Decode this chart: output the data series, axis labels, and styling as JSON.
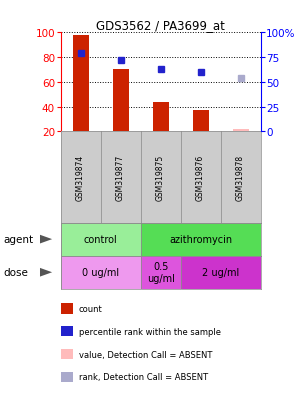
{
  "title": "GDS3562 / PA3699_at",
  "samples": [
    "GSM319874",
    "GSM319877",
    "GSM319875",
    "GSM319876",
    "GSM319878"
  ],
  "count_values": [
    98,
    70,
    44,
    37,
    22
  ],
  "count_colors": [
    "#cc2200",
    "#cc2200",
    "#cc2200",
    "#cc2200",
    "#ffbbbb"
  ],
  "rank_values": [
    79,
    72,
    63,
    60,
    54
  ],
  "rank_colors": [
    "#2222cc",
    "#2222cc",
    "#2222cc",
    "#2222cc",
    "#aaaacc"
  ],
  "count_absent": [
    false,
    false,
    false,
    false,
    true
  ],
  "rank_absent": [
    false,
    false,
    false,
    false,
    true
  ],
  "left_ylim": [
    20,
    100
  ],
  "left_yticks": [
    20,
    40,
    60,
    80,
    100
  ],
  "right_yticks": [
    0,
    25,
    50,
    75,
    100
  ],
  "right_yticklabels": [
    "0",
    "25",
    "50",
    "75",
    "100%"
  ],
  "agent_row": [
    {
      "label": "control",
      "color": "#99ee99",
      "span": [
        0,
        2
      ]
    },
    {
      "label": "azithromycin",
      "color": "#55dd55",
      "span": [
        2,
        5
      ]
    }
  ],
  "dose_row": [
    {
      "label": "0 ug/ml",
      "color": "#ee99ee",
      "span": [
        0,
        2
      ]
    },
    {
      "label": "0.5\nug/ml",
      "color": "#dd55dd",
      "span": [
        2,
        3
      ]
    },
    {
      "label": "2 ug/ml",
      "color": "#cc33cc",
      "span": [
        3,
        5
      ]
    }
  ],
  "legend_items": [
    {
      "color": "#cc2200",
      "label": "count"
    },
    {
      "color": "#2222cc",
      "label": "percentile rank within the sample"
    },
    {
      "color": "#ffbbbb",
      "label": "value, Detection Call = ABSENT"
    },
    {
      "color": "#aaaacc",
      "label": "rank, Detection Call = ABSENT"
    }
  ],
  "bg_color": "#ffffff",
  "sample_box_color": "#cccccc"
}
